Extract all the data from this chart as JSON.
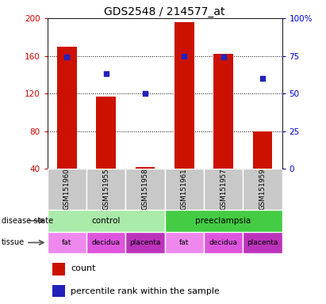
{
  "title": "GDS2548 / 214577_at",
  "samples": [
    "GSM151960",
    "GSM151955",
    "GSM151958",
    "GSM151961",
    "GSM151957",
    "GSM151959"
  ],
  "counts": [
    170,
    117,
    42,
    196,
    162,
    80
  ],
  "percentiles": [
    74,
    63,
    50,
    75,
    74,
    60
  ],
  "ylim_left": [
    40,
    200
  ],
  "ylim_right": [
    0,
    100
  ],
  "yticks_left": [
    40,
    80,
    120,
    160,
    200
  ],
  "yticks_right": [
    0,
    25,
    50,
    75,
    100
  ],
  "bar_color": "#CC1100",
  "dot_color": "#2222BB",
  "title_fontsize": 10,
  "disease_colors": {
    "control": "#AAEAAA",
    "preeclampsia": "#44CC44"
  },
  "tissue_colors": {
    "fat": "#EE88EE",
    "decidua": "#DD55DD",
    "placenta": "#BB33BB"
  },
  "tissue": [
    "fat",
    "decidua",
    "placenta",
    "fat",
    "decidua",
    "placenta"
  ],
  "bg_color": "#C8C8C8",
  "plot_bg": "#FFFFFF",
  "bar_width": 0.5,
  "left_label_color": "#CC0000",
  "right_label_color": "#0000CC"
}
